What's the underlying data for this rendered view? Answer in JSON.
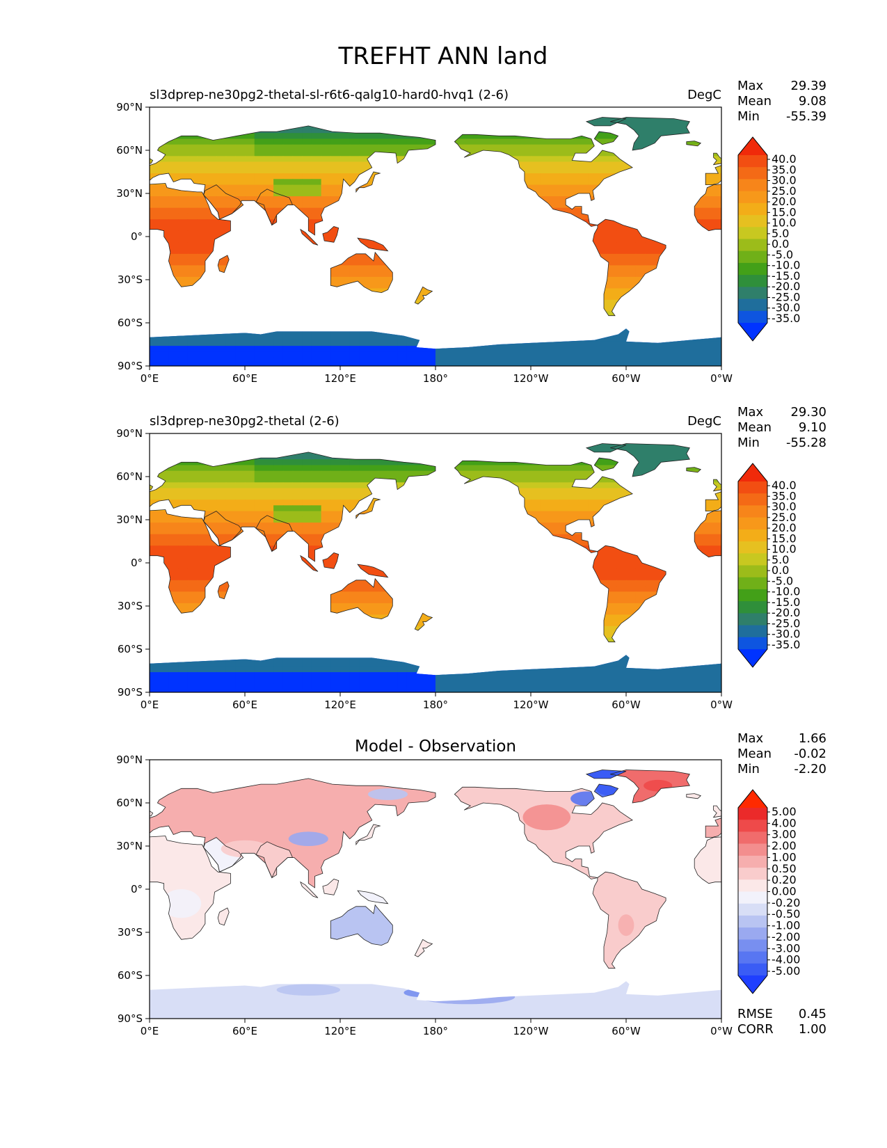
{
  "figure_title": "TREFHT ANN land",
  "lat_ticks": [
    "90°N",
    "60°N",
    "30°N",
    "0°",
    "30°S",
    "60°S",
    "90°S"
  ],
  "lon_ticks": [
    "0°E",
    "60°E",
    "120°E",
    "180°",
    "120°W",
    "60°W",
    "0°W"
  ],
  "colors": {
    "ocean": "#ffffff",
    "coast": "#222222",
    "temp_scale": [
      "#0033ff",
      "#0e55e0",
      "#1f6e9c",
      "#2f7f6a",
      "#2f8f3a",
      "#43a018",
      "#70b018",
      "#9cbc1a",
      "#c8c820",
      "#e6c020",
      "#f3ad18",
      "#f7981a",
      "#f7851a",
      "#f46a16",
      "#f24e12",
      "#f02a0a"
    ],
    "diff_scale": [
      "#1f3fff",
      "#3a5cf5",
      "#5876f2",
      "#788ff0",
      "#9aa9f0",
      "#b9c4f2",
      "#d8def6",
      "#f2f2fb",
      "#fbe8e8",
      "#f9cccc",
      "#f6aeae",
      "#f38e8e",
      "#f06c6c",
      "#ee4a4a",
      "#eb2a2a",
      "#ff2a00"
    ]
  },
  "panels": [
    {
      "id": "test",
      "title": "sl3dprep-ne30pg2-thetal-sl-r6t6-qalg10-hard0-hvq1 (2-6)",
      "units": "DegC",
      "stats": [
        {
          "label": "Max",
          "value": "29.39"
        },
        {
          "label": "Mean",
          "value": "9.08"
        },
        {
          "label": "Min",
          "value": "-55.39"
        }
      ],
      "colorbar": [
        "40.0",
        "35.0",
        "30.0",
        "25.0",
        "20.0",
        "15.0",
        "10.0",
        "5.0",
        "0.0",
        "-5.0",
        "-10.0",
        "-15.0",
        "-20.0",
        "-25.0",
        "-30.0",
        "-35.0"
      ]
    },
    {
      "id": "reference",
      "title": "sl3dprep-ne30pg2-thetal (2-6)",
      "units": "DegC",
      "stats": [
        {
          "label": "Max",
          "value": "29.30"
        },
        {
          "label": "Mean",
          "value": "9.10"
        },
        {
          "label": "Min",
          "value": "-55.28"
        }
      ],
      "colorbar": [
        "40.0",
        "35.0",
        "30.0",
        "25.0",
        "20.0",
        "15.0",
        "10.0",
        "5.0",
        "0.0",
        "-5.0",
        "-10.0",
        "-15.0",
        "-20.0",
        "-25.0",
        "-30.0",
        "-35.0"
      ]
    },
    {
      "id": "difference",
      "title": "Model - Observation",
      "units": "",
      "stats": [
        {
          "label": "Max",
          "value": "1.66"
        },
        {
          "label": "Mean",
          "value": "-0.02"
        },
        {
          "label": "Min",
          "value": "-2.20"
        }
      ],
      "colorbar": [
        "5.00",
        "4.00",
        "3.00",
        "2.00",
        "1.00",
        "0.50",
        "0.20",
        "0.00",
        "-0.20",
        "-0.50",
        "-1.00",
        "-2.00",
        "-3.00",
        "-4.00",
        "-5.00"
      ],
      "extra_stats": [
        {
          "label": "RMSE",
          "value": "0.45"
        },
        {
          "label": "CORR",
          "value": "1.00"
        }
      ]
    }
  ]
}
